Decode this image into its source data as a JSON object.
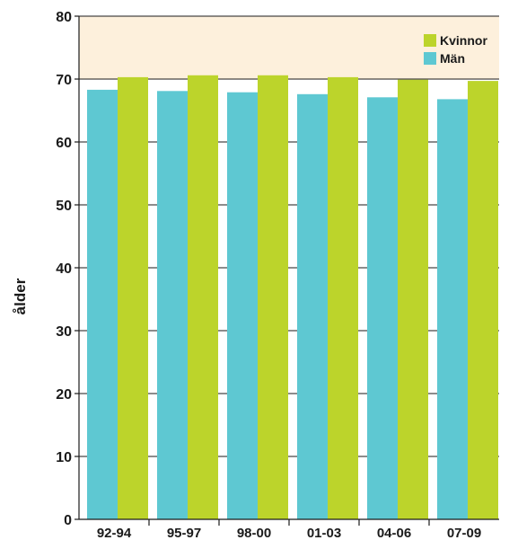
{
  "chart_data": {
    "type": "bar",
    "ylabel": "ålder",
    "xlabel": "",
    "ylim": [
      0,
      80
    ],
    "yticks": [
      0,
      10,
      20,
      30,
      40,
      50,
      60,
      70,
      80
    ],
    "categories": [
      "92-94",
      "95-97",
      "98-00",
      "01-03",
      "04-06",
      "07-09"
    ],
    "series": [
      {
        "name": "Män",
        "color": "#5ec8d2",
        "values": [
          68.3,
          68.1,
          67.9,
          67.6,
          67.1,
          66.8
        ]
      },
      {
        "name": "Kvinnor",
        "color": "#bcd42b",
        "values": [
          70.3,
          70.6,
          70.6,
          70.3,
          69.9,
          69.7
        ]
      }
    ],
    "legend": [
      "Kvinnor",
      "Män"
    ],
    "legend_position": "top-right",
    "highlight_band": [
      70,
      80
    ],
    "grid": "horizontal",
    "colors": {
      "background": "#fdf0dc",
      "gridline": "#1a1a1a"
    }
  }
}
